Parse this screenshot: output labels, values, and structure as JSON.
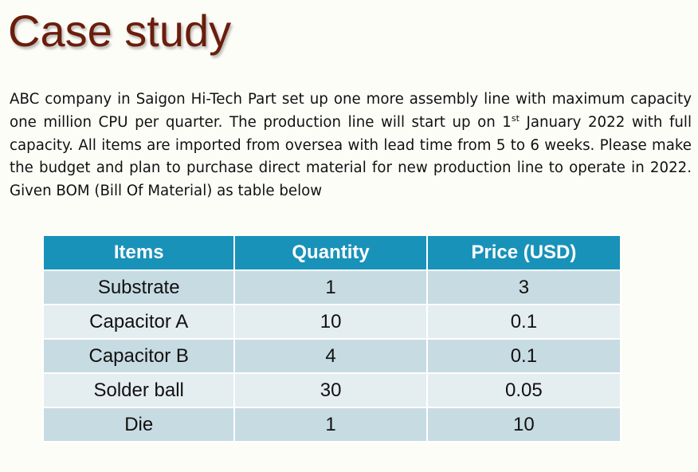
{
  "slide": {
    "title": "Case study",
    "paragraph_before_sup": "ABC company in Saigon Hi-Tech Part set up one more assembly line with maximum capacity one million CPU per quarter. The production line will start up on 1",
    "paragraph_sup": "st",
    "paragraph_after_sup": " January 2022 with full capacity. All items are imported from oversea with lead time from 5 to 6 weeks. Please make the budget and plan to purchase direct material for new production line to operate in 2022. Given BOM (Bill Of Material) as table below"
  },
  "bom_table": {
    "headers": [
      "Items",
      "Quantity",
      "Price (USD)"
    ],
    "rows": [
      [
        "Substrate",
        "1",
        "3"
      ],
      [
        "Capacitor A",
        "10",
        "0.1"
      ],
      [
        "Capacitor B",
        "4",
        "0.1"
      ],
      [
        "Solder ball",
        "30",
        "0.05"
      ],
      [
        "Die",
        "1",
        "10"
      ]
    ],
    "colors": {
      "header_bg": "#1992b9",
      "row_odd_bg": "#c7dbe2",
      "row_even_bg": "#e4edf0",
      "title_color": "#6b1d0c"
    }
  }
}
